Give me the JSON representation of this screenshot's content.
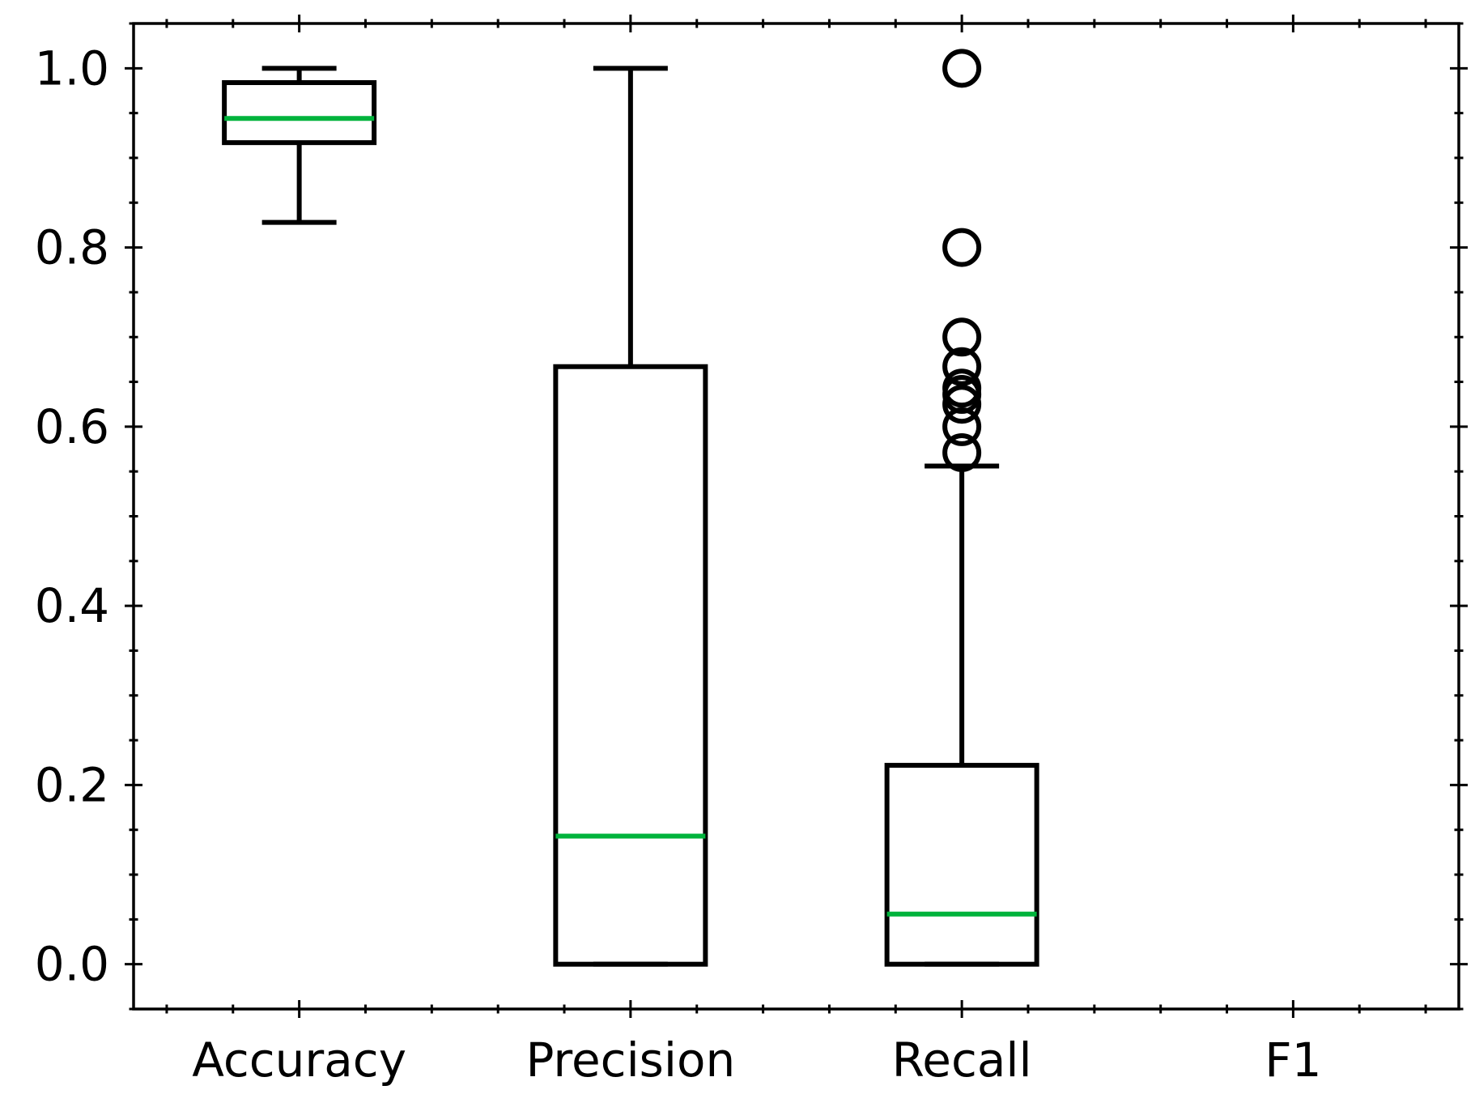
{
  "chart_data": {
    "type": "box",
    "title": "",
    "xlabel": "",
    "ylabel": "",
    "categories": [
      "Accuracy",
      "Precision",
      "Recall",
      "F1"
    ],
    "ylim": [
      -0.05,
      1.05
    ],
    "yticks": [
      "0.0",
      "0.2",
      "0.4",
      "0.6",
      "0.8",
      "1.0"
    ],
    "grid": false,
    "colors": {
      "box": "#000000",
      "median": "#00b33c",
      "flier_edge": "#000000"
    },
    "boxes": [
      {
        "category": "Accuracy",
        "whisker_low": 0.828,
        "q1": 0.917,
        "median": 0.944,
        "q3": 0.984,
        "whisker_high": 1.0,
        "fliers": []
      },
      {
        "category": "Precision",
        "whisker_low": 0.0,
        "q1": 0.0,
        "median": 0.143,
        "q3": 0.667,
        "whisker_high": 1.0,
        "fliers": []
      },
      {
        "category": "Recall",
        "whisker_low": 0.0,
        "q1": 0.0,
        "median": 0.056,
        "q3": 0.222,
        "whisker_high": 0.556,
        "fliers": [
          1.0,
          0.8,
          0.7,
          0.667,
          0.643,
          0.636,
          0.625,
          0.6,
          0.571
        ]
      }
    ]
  }
}
